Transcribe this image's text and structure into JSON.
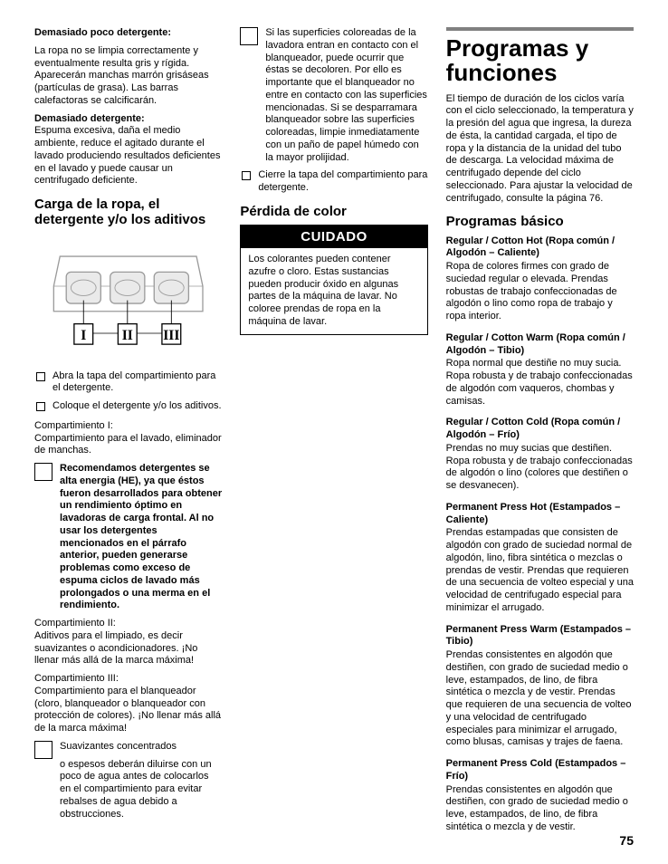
{
  "col1": {
    "h_too_little": "Demasiado poco detergente:",
    "p_too_little": "La ropa no se limpia correctamente y eventualmente resulta gris y rígida. Aparecerán manchas marrón grisáseas (partículas de grasa). Las barras calefactoras se calcificarán.",
    "h_too_much": "Demasiado detergente:",
    "p_too_much": "Espuma excesiva, daña el medio ambiente, reduce el agitado durante el lavado produciendo resultados deficientes en el lavado y puede causar un centrifugado deficiente.",
    "h_carga": "Carga de la ropa, el detergente y/o los aditivos",
    "cl1": "Abra la tapa del compartimiento para el detergente.",
    "cl2": "Coloque el detergente y/o los aditivos.",
    "comp1_label": "Compartimiento I:",
    "comp1_body": "Compartimiento para el lavado, eliminador de manchas.",
    "he_note": "Recomendamos detergentes se alta energia (HE), ya que éstos fueron desarrollados para obtener un rendimiento óptimo en lavadoras de carga frontal. Al no usar los detergentes mencionados en el párrafo anterior, pueden generarse problemas como exceso de espuma ciclos de lavado más prolongados o una merma en el rendimiento.",
    "comp2_label": "Compartimiento II:",
    "comp2_body": "Aditivos para el limpiado, es decir suavizantes o acondicionadores. ¡No llenar más allá de la marca máxima!",
    "comp3_label": "Compartimiento III:",
    "comp3_body": "Compartimiento para el blanqueador (cloro, blanqueador o blanqueador con protección de colores). ¡No llenar más allá de la marca máxima!",
    "suav_head": "Suavizantes concentrados",
    "suav_body": "o espesos deberán diluirse con un poco de agua antes de colocarlos en el compartimiento para evitar rebalses de agua debido a obstrucciones."
  },
  "col2": {
    "bleach_note": "Si las superficies coloreadas de la lavadora entran en contacto con el blanqueador, puede ocurrir que éstas se decoloren.  Por ello es importante que el blanqueador no entre en contacto con las superficies mencionadas.  Si se desparramara blanqueador sobre las superficies coloreadas, limpie inmediatamente con un paño de papel húmedo con la mayor prolijidad.",
    "close_lid": "Cierre la tapa del compartimiento para detergente.",
    "h_perdida": "Pérdida de color",
    "cuidado": "CUIDADO",
    "cuidado_body": "Los colorantes pueden contener azufre o cloro. Estas sustancias pueden producir óxido en algunas partes de la máquina de lavar. No coloree prendas de ropa en la máquina de lavar."
  },
  "col3": {
    "h_programas": "Programas y funciones",
    "intro": "El tiempo de duración de los ciclos varía con el ciclo seleccionado, la temperatura y la presión del agua que ingresa, la dureza de ésta, la cantidad cargada, el tipo de ropa y la distancia de la unidad del tubo de descarga. La velocidad máxima de centrifugado depende del ciclo seleccionado. Para ajustar la velocidad de centrifugado, consulte la página 76.",
    "h_basico": "Programas básico",
    "programs": [
      {
        "title": "Regular / Cotton Hot (Ropa común / Algodón – Caliente)",
        "body": "Ropa de colores firmes con grado de suciedad regular o elevada. Prendas robustas de trabajo confeccionadas de algodón o lino como ropa de trabajo y ropa interior."
      },
      {
        "title": "Regular / Cotton Warm (Ropa común / Algodón – Tibio)",
        "body": "Ropa normal que destiñe no muy sucia. Ropa robusta y de trabajo confeccionadas de algodón com vaqueros, chombas y camisas."
      },
      {
        "title": "Regular / Cotton Cold (Ropa común / Algodón – Frío)",
        "body": "Prendas no muy sucias que destiñen. Ropa robusta y de trabajo confeccionadas de algodón o lino (colores que destiñen o se desvanecen)."
      },
      {
        "title": "Permanent Press Hot (Estampados – Caliente)",
        "body": "Prendas estampadas que consisten de algodón con grado de suciedad normal de algodón, lino, fibra sintética o mezclas o prendas de vestir. Prendas que requieren de una secuencia de volteo especial y una velocidad de centrifugado especial para minimizar el arrugado."
      },
      {
        "title": "Permanent Press Warm (Estampados – Tibio)",
        "body": "Prendas consistentes en algodón que destiñen, con grado de suciedad medio o leve, estampados, de lino, de fibra sintética o mezcla y de vestir. Prendas que requieren de una secuencia de volteo y una velocidad de centrifugado especiales para minimizar el arrugado, como blusas, camisas y trajes de faena."
      },
      {
        "title": "Permanent Press Cold (Estampados – Frío)",
        "body": "Prendas consistentes en algodón que destiñen, con grado de suciedad medio o leve, estampados, de lino, de fibra sintética o mezcla y de vestir."
      }
    ]
  },
  "page_number": "75",
  "diagram": {
    "labels": [
      "I",
      "II",
      "III"
    ],
    "stroke": "#9a9a9a",
    "label_color": "#000000",
    "bg": "#ffffff"
  }
}
